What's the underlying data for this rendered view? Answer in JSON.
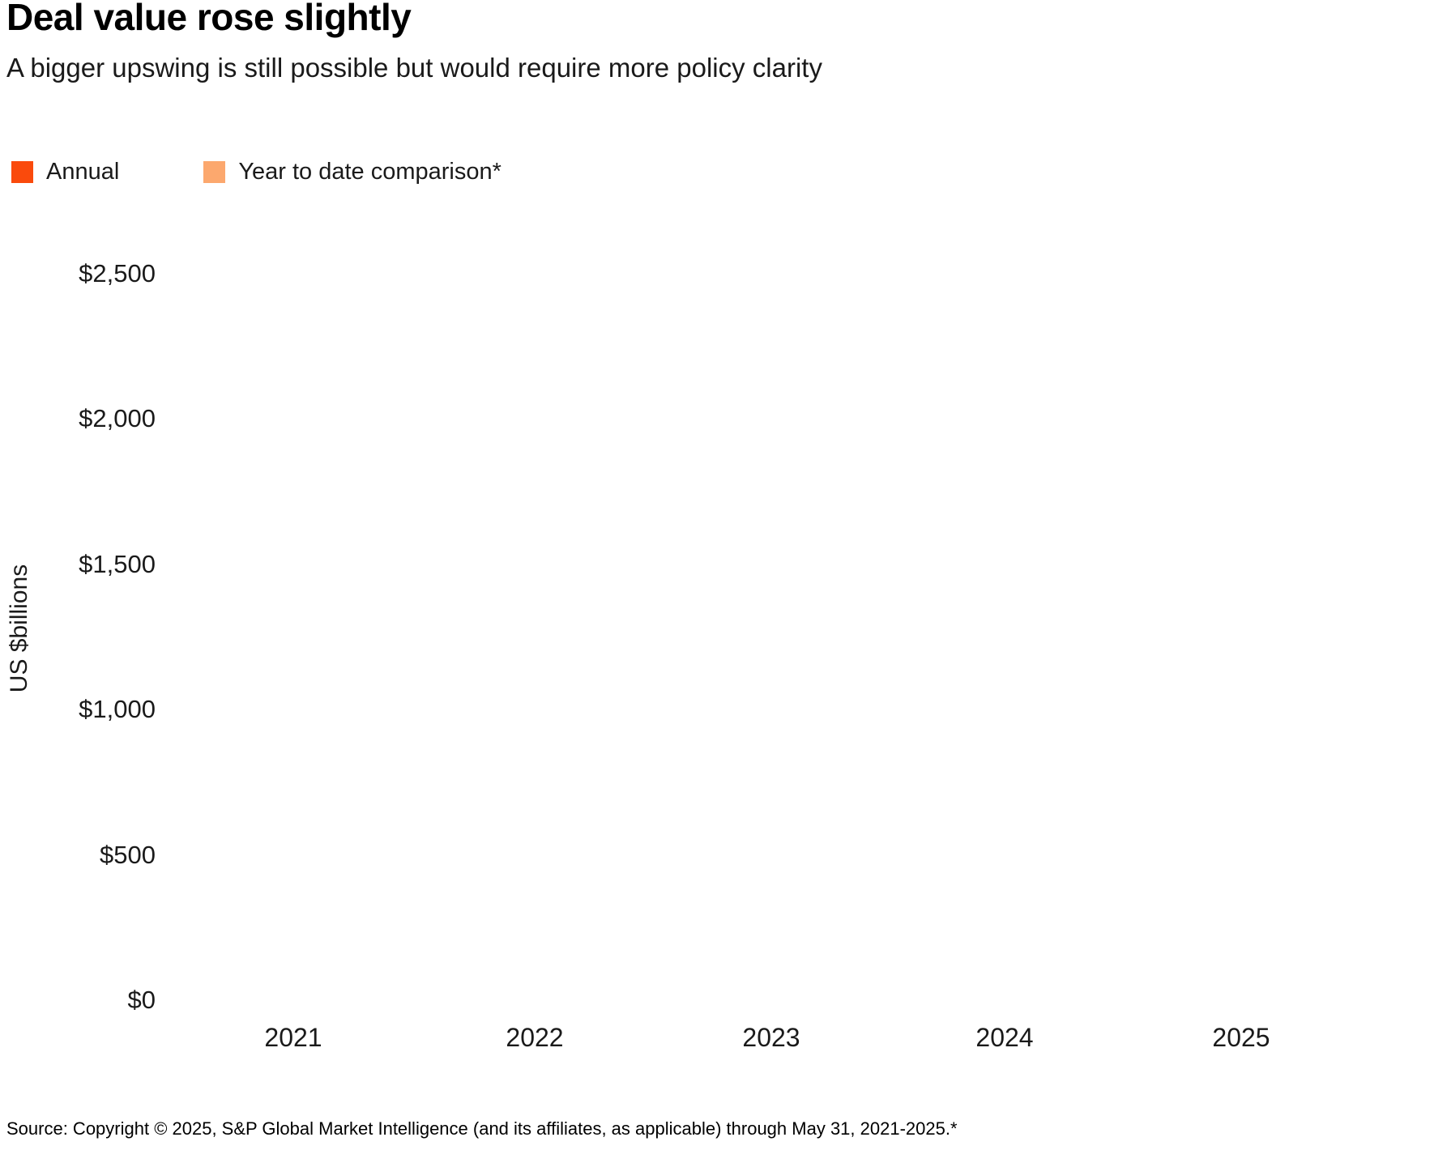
{
  "header": {
    "title": "Deal value rose slightly",
    "subtitle": "A bigger upswing is still possible but would require more policy clarity"
  },
  "legend": {
    "items": [
      {
        "label": "Annual",
        "color": "#FA4A0C"
      },
      {
        "label": "Year to date comparison*",
        "color": "#FCA86E"
      }
    ]
  },
  "chart_data": {
    "type": "bar",
    "title": "Deal value rose slightly",
    "subtitle": "A bigger upswing is still possible but would require more policy clarity",
    "categories": [
      "2021",
      "2022",
      "2023",
      "2024",
      "2025"
    ],
    "series": [
      {
        "name": "Annual",
        "color": "#FA4A0C",
        "values": [
          null,
          null,
          null,
          null,
          null
        ]
      },
      {
        "name": "Year to date comparison*",
        "color": "#FCA86E",
        "values": [
          null,
          null,
          null,
          null,
          null
        ]
      }
    ],
    "xlabel": "",
    "ylabel": "US $billions",
    "ylim": [
      0,
      2500
    ],
    "ytick_interval": 500,
    "ytick_labels_bottom_to_top": [
      "$0",
      "$500",
      "$1,000",
      "$1,500",
      "$2,000",
      "$2,500"
    ],
    "grid": false,
    "axis_lines": false,
    "legend_position": "top-left",
    "bars_rendered": false
  },
  "y_axis": {
    "title": "US $billions",
    "ticks": [
      "$2,500",
      "$2,000",
      "$1,500",
      "$1,000",
      "$500",
      "$0"
    ]
  },
  "x_axis": {
    "ticks": [
      "2021",
      "2022",
      "2023",
      "2024",
      "2025"
    ]
  },
  "footer": {
    "source": "Source: Copyright © 2025, S&P Global Market Intelligence (and its affiliates, as applicable) through May 31, 2021-2025.*"
  }
}
